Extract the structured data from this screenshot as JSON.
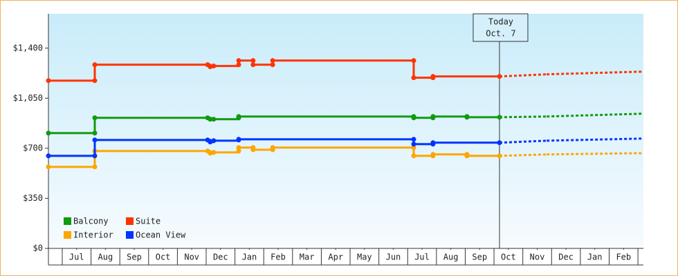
{
  "chart_data": {
    "type": "step",
    "xlim": [
      -0.48,
      20.19
    ],
    "xticks": [
      {
        "value": 0.5,
        "label": "Jul"
      },
      {
        "value": 1.5,
        "label": "Aug"
      },
      {
        "value": 2.5,
        "label": "Sep"
      },
      {
        "value": 3.5,
        "label": "Oct"
      },
      {
        "value": 4.5,
        "label": "Nov"
      },
      {
        "value": 5.5,
        "label": "Dec"
      },
      {
        "value": 6.5,
        "label": "Jan"
      },
      {
        "value": 7.5,
        "label": "Feb"
      },
      {
        "value": 8.5,
        "label": "Mar"
      },
      {
        "value": 9.5,
        "label": "Apr"
      },
      {
        "value": 10.5,
        "label": "May"
      },
      {
        "value": 11.5,
        "label": "Jun"
      },
      {
        "value": 12.5,
        "label": "Jul"
      },
      {
        "value": 13.5,
        "label": "Aug"
      },
      {
        "value": 14.5,
        "label": "Sep"
      },
      {
        "value": 15.5,
        "label": "Oct"
      },
      {
        "value": 16.5,
        "label": "Nov"
      },
      {
        "value": 17.5,
        "label": "Dec"
      },
      {
        "value": 18.5,
        "label": "Jan"
      },
      {
        "value": 19.5,
        "label": "Feb"
      }
    ],
    "ylim": [
      0,
      1640
    ],
    "yticks": [
      {
        "value": 0,
        "label": "$0"
      },
      {
        "value": 350,
        "label": "$350"
      },
      {
        "value": 700,
        "label": "$700"
      },
      {
        "value": 1050,
        "label": "$1,050"
      },
      {
        "value": 1400,
        "label": "$1,400"
      }
    ],
    "annotation": {
      "text": [
        "Today",
        "Oct. 7"
      ],
      "x": 15.19
    },
    "series": [
      {
        "name": "Balcony",
        "color": "#109a10",
        "x": [
          -0.48,
          1.13,
          1.13,
          5.05,
          5.14,
          5.26,
          6.13,
          6.13,
          12.21,
          12.21,
          12.88,
          12.88,
          14.06,
          14.06,
          15.19,
          16.83,
          20.19
        ],
        "values": [
          806,
          806,
          913,
          913,
          903,
          903,
          913,
          922,
          922,
          913,
          913,
          922,
          922,
          917,
          917,
          922,
          942
        ]
      },
      {
        "name": "Suite",
        "color": "#ff3300",
        "x": [
          -0.48,
          1.13,
          1.13,
          5.05,
          5.14,
          5.26,
          6.13,
          6.13,
          6.63,
          6.63,
          7.31,
          7.31,
          12.21,
          12.21,
          12.88,
          12.88,
          15.19,
          16.83,
          20.19
        ],
        "values": [
          1173,
          1173,
          1284,
          1284,
          1270,
          1275,
          1284,
          1313,
          1313,
          1284,
          1284,
          1313,
          1313,
          1193,
          1193,
          1202,
          1202,
          1217,
          1236
        ]
      },
      {
        "name": "Interior",
        "color": "#ffa500",
        "x": [
          -0.48,
          1.13,
          1.13,
          5.05,
          5.14,
          5.26,
          6.13,
          6.13,
          6.63,
          6.63,
          7.31,
          7.31,
          12.21,
          12.21,
          12.88,
          12.88,
          14.06,
          14.06,
          15.19,
          16.83,
          20.19
        ],
        "values": [
          570,
          570,
          681,
          681,
          666,
          671,
          681,
          705,
          705,
          690,
          690,
          705,
          705,
          647,
          647,
          657,
          657,
          647,
          647,
          657,
          666
        ]
      },
      {
        "name": "Ocean View",
        "color": "#0033ff",
        "x": [
          -0.48,
          1.13,
          1.13,
          5.05,
          5.14,
          5.26,
          6.13,
          6.13,
          12.21,
          12.21,
          12.88,
          12.88,
          15.19,
          16.83,
          20.19
        ],
        "values": [
          647,
          647,
          758,
          758,
          744,
          753,
          758,
          763,
          763,
          729,
          729,
          739,
          739,
          753,
          768
        ]
      }
    ]
  }
}
